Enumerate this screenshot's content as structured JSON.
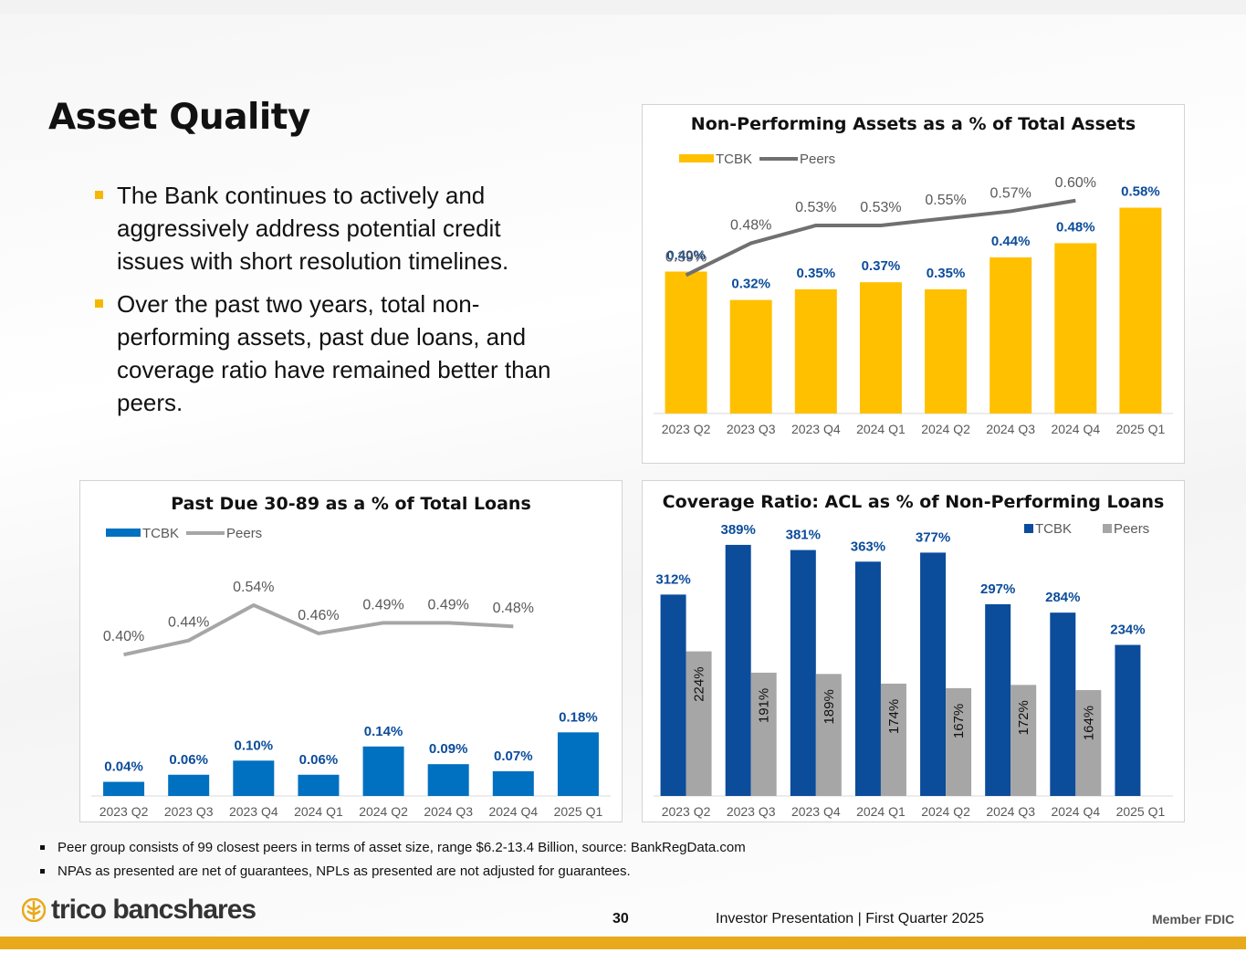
{
  "page": {
    "title": "Asset Quality",
    "bullets": [
      "The Bank continues to actively and aggressively address potential credit issues with short resolution timelines.",
      "Over the past two years, total non-performing assets, past due loans, and coverage ratio have remained better than peers."
    ],
    "footnotes": [
      "Peer group consists of 99 closest peers in terms of asset size, range $6.2-13.4 Billion, source: BankRegData.com",
      "NPAs  as presented are net of guarantees, NPLs as presented are not adjusted for guarantees."
    ],
    "logo_text": "trico bancshares",
    "page_number": "30",
    "footer": "Investor Presentation  |  First Quarter 2025",
    "fdic": "Member FDIC",
    "colors": {
      "gold": "#FFC000",
      "blue": "#0070C0",
      "navy": "#0B4C9B",
      "gray": "#A6A6A6",
      "line_dark": "#707070",
      "line_light": "#A6A6A6"
    }
  },
  "chart_data": [
    {
      "type": "bar",
      "title": "Non-Performing Assets as a % of Total Assets",
      "categories": [
        "2023 Q2",
        "2023 Q3",
        "2023 Q4",
        "2024 Q1",
        "2024 Q2",
        "2024 Q3",
        "2024 Q4",
        "2025 Q1"
      ],
      "series": [
        {
          "name": "TCBK",
          "kind": "bar",
          "values": [
            0.4,
            0.32,
            0.35,
            0.37,
            0.35,
            0.44,
            0.48,
            0.58
          ],
          "labels": [
            "0.40%",
            "0.32%",
            "0.35%",
            "0.37%",
            "0.35%",
            "0.44%",
            "0.48%",
            "0.58%"
          ]
        },
        {
          "name": "Peers",
          "kind": "line",
          "values": [
            0.39,
            0.48,
            0.53,
            0.53,
            0.55,
            0.57,
            0.6,
            null
          ],
          "labels": [
            "0.39%",
            "0.48%",
            "0.53%",
            "0.53%",
            "0.55%",
            "0.57%",
            "0.60%",
            ""
          ]
        }
      ],
      "ylim": [
        0,
        0.62
      ],
      "grid": false,
      "legend": "top-left"
    },
    {
      "type": "bar",
      "title": "Past Due 30-89 as a % of Total Loans",
      "categories": [
        "2023 Q2",
        "2023 Q3",
        "2023 Q4",
        "2024 Q1",
        "2024 Q2",
        "2024 Q3",
        "2024 Q4",
        "2025 Q1"
      ],
      "series": [
        {
          "name": "TCBK",
          "kind": "bar",
          "values": [
            0.04,
            0.06,
            0.1,
            0.06,
            0.14,
            0.09,
            0.07,
            0.18
          ],
          "labels": [
            "0.04%",
            "0.06%",
            "0.10%",
            "0.06%",
            "0.14%",
            "0.09%",
            "0.07%",
            "0.18%"
          ]
        },
        {
          "name": "Peers",
          "kind": "line",
          "values": [
            0.4,
            0.44,
            0.54,
            0.46,
            0.49,
            0.49,
            0.48,
            null
          ],
          "labels": [
            "0.40%",
            "0.44%",
            "0.54%",
            "0.46%",
            "0.49%",
            "0.49%",
            "0.48%",
            ""
          ]
        }
      ],
      "ylim": [
        0,
        0.62
      ],
      "grid": false,
      "legend": "top-left"
    },
    {
      "type": "bar",
      "title": "Coverage Ratio:  ACL as % of Non-Performing Loans",
      "categories": [
        "2023 Q2",
        "2023 Q3",
        "2023 Q4",
        "2024 Q1",
        "2024 Q2",
        "2024 Q3",
        "2024 Q4",
        "2025 Q1"
      ],
      "series": [
        {
          "name": "TCBK",
          "kind": "bar",
          "values": [
            312,
            389,
            381,
            363,
            377,
            297,
            284,
            234
          ],
          "labels": [
            "312%",
            "389%",
            "381%",
            "363%",
            "377%",
            "297%",
            "284%",
            "234%"
          ]
        },
        {
          "name": "Peers",
          "kind": "bar",
          "values": [
            224,
            191,
            189,
            174,
            167,
            172,
            164,
            null
          ],
          "labels": [
            "224%",
            "191%",
            "189%",
            "174%",
            "167%",
            "172%",
            "164%",
            ""
          ]
        }
      ],
      "ylim": [
        0,
        420
      ],
      "grid": false,
      "legend": "top-right"
    }
  ]
}
